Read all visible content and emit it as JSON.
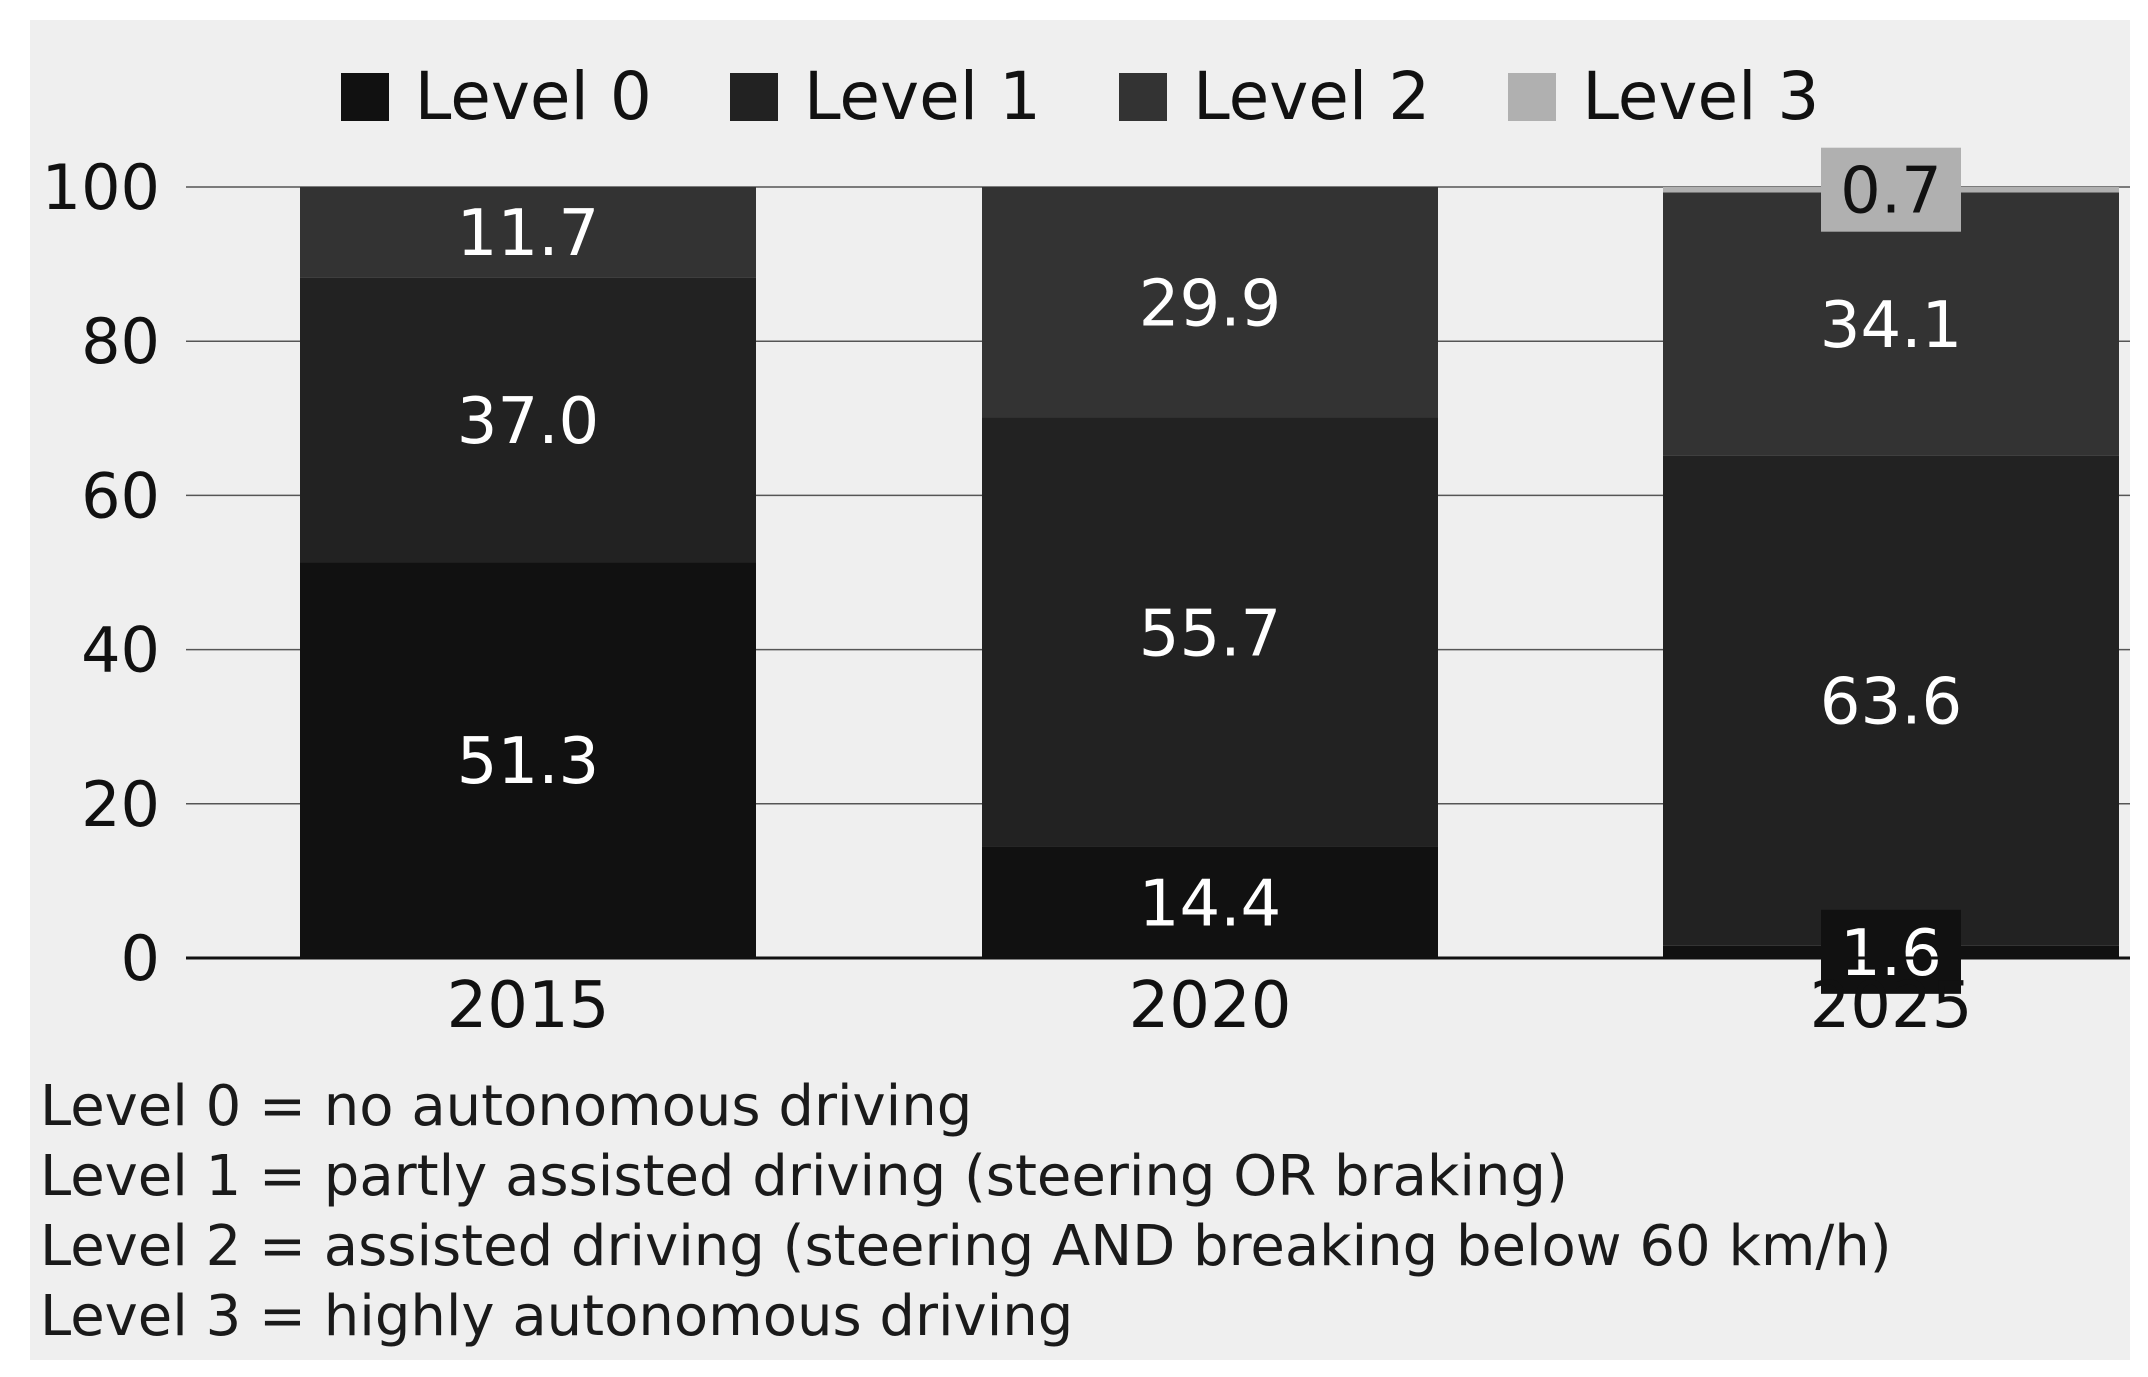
{
  "chart_data": {
    "type": "bar",
    "stacked": true,
    "title": "",
    "xlabel": "",
    "ylabel": "",
    "ylim": [
      0,
      100
    ],
    "yticks": [
      0,
      20,
      40,
      60,
      80,
      100
    ],
    "grid": true,
    "legend_position": "top",
    "categories": [
      "2015",
      "2020",
      "2025"
    ],
    "series": [
      {
        "name": "Level 0",
        "values": [
          51.3,
          14.4,
          1.6
        ],
        "color": "#111111"
      },
      {
        "name": "Level 1",
        "values": [
          37.0,
          55.7,
          63.6
        ],
        "color": "#222222"
      },
      {
        "name": "Level 2",
        "values": [
          11.7,
          29.9,
          34.1
        ],
        "color": "#333333"
      },
      {
        "name": "Level 3",
        "values": [
          null,
          null,
          0.7
        ],
        "color": "#b0b0b0"
      }
    ],
    "data_labels": [
      [
        "51.3",
        "14.4",
        "1.6"
      ],
      [
        "37.0",
        "55.7",
        "63.6"
      ],
      [
        "11.7",
        "29.9",
        "34.1"
      ],
      [
        "",
        "",
        "0.7"
      ]
    ]
  },
  "footnotes": [
    "Level 0 = no autonomous driving",
    "Level 1 = partly assisted driving (steering OR braking)",
    "Level 2 = assisted driving (steering AND breaking below 60 km/h)",
    "Level 3 = highly autonomous driving"
  ]
}
